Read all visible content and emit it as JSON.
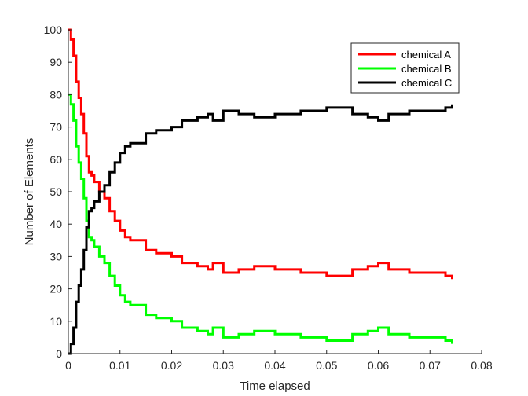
{
  "chart_data": {
    "type": "line",
    "xlabel": "Time elapsed",
    "ylabel": "Number of Elements",
    "xlim": [
      0,
      0.08
    ],
    "ylim": [
      0,
      100
    ],
    "xticks": [
      0,
      0.01,
      0.02,
      0.03,
      0.04,
      0.05,
      0.06,
      0.07,
      0.08
    ],
    "xtick_labels": [
      "0",
      "0.01",
      "0.02",
      "0.03",
      "0.04",
      "0.05",
      "0.06",
      "0.07",
      "0.08"
    ],
    "yticks": [
      0,
      10,
      20,
      30,
      40,
      50,
      60,
      70,
      80,
      90,
      100
    ],
    "ytick_labels": [
      "0",
      "10",
      "20",
      "30",
      "40",
      "50",
      "60",
      "70",
      "80",
      "90",
      "100"
    ],
    "grid": false,
    "legend_position": "top-right",
    "series": [
      {
        "name": "chemical A",
        "color": "#ff0000",
        "x": [
          0,
          0.0005,
          0.001,
          0.0015,
          0.002,
          0.0025,
          0.003,
          0.0035,
          0.004,
          0.0045,
          0.005,
          0.006,
          0.007,
          0.008,
          0.009,
          0.01,
          0.011,
          0.012,
          0.013,
          0.015,
          0.017,
          0.02,
          0.022,
          0.025,
          0.027,
          0.028,
          0.03,
          0.033,
          0.036,
          0.04,
          0.045,
          0.05,
          0.055,
          0.058,
          0.06,
          0.062,
          0.066,
          0.07,
          0.073,
          0.0743
        ],
        "y": [
          100,
          97,
          92,
          84,
          79,
          74,
          68,
          61,
          56,
          55,
          53,
          50,
          48,
          44,
          41,
          38,
          36,
          35,
          35,
          32,
          31,
          30,
          28,
          27,
          26,
          28,
          25,
          26,
          27,
          26,
          25,
          24,
          26,
          27,
          28,
          26,
          25,
          25,
          24,
          23
        ]
      },
      {
        "name": "chemical B",
        "color": "#00ff00",
        "x": [
          0,
          0.0005,
          0.001,
          0.0015,
          0.002,
          0.0025,
          0.003,
          0.0035,
          0.004,
          0.0045,
          0.005,
          0.006,
          0.007,
          0.008,
          0.009,
          0.01,
          0.011,
          0.012,
          0.013,
          0.015,
          0.017,
          0.02,
          0.022,
          0.025,
          0.027,
          0.028,
          0.03,
          0.033,
          0.036,
          0.04,
          0.045,
          0.05,
          0.055,
          0.058,
          0.06,
          0.062,
          0.066,
          0.07,
          0.073,
          0.0743
        ],
        "y": [
          80,
          77,
          72,
          64,
          59,
          54,
          48,
          41,
          36,
          35,
          33,
          30,
          28,
          24,
          21,
          18,
          16,
          15,
          15,
          12,
          11,
          10,
          8,
          7,
          6,
          8,
          5,
          6,
          7,
          6,
          5,
          4,
          6,
          7,
          8,
          6,
          5,
          5,
          4,
          3
        ]
      },
      {
        "name": "chemical C",
        "color": "#000000",
        "x": [
          0,
          0.0005,
          0.001,
          0.0015,
          0.002,
          0.0025,
          0.003,
          0.0035,
          0.004,
          0.0045,
          0.005,
          0.006,
          0.007,
          0.008,
          0.009,
          0.01,
          0.011,
          0.012,
          0.013,
          0.015,
          0.017,
          0.02,
          0.022,
          0.025,
          0.027,
          0.028,
          0.03,
          0.033,
          0.036,
          0.04,
          0.045,
          0.05,
          0.055,
          0.058,
          0.06,
          0.062,
          0.066,
          0.07,
          0.073,
          0.0743
        ],
        "y": [
          0,
          3,
          8,
          16,
          21,
          26,
          32,
          39,
          44,
          45,
          47,
          50,
          52,
          56,
          59,
          62,
          64,
          65,
          65,
          68,
          69,
          70,
          72,
          73,
          74,
          72,
          75,
          74,
          73,
          74,
          75,
          76,
          74,
          73,
          72,
          74,
          75,
          75,
          76,
          77
        ]
      }
    ]
  }
}
